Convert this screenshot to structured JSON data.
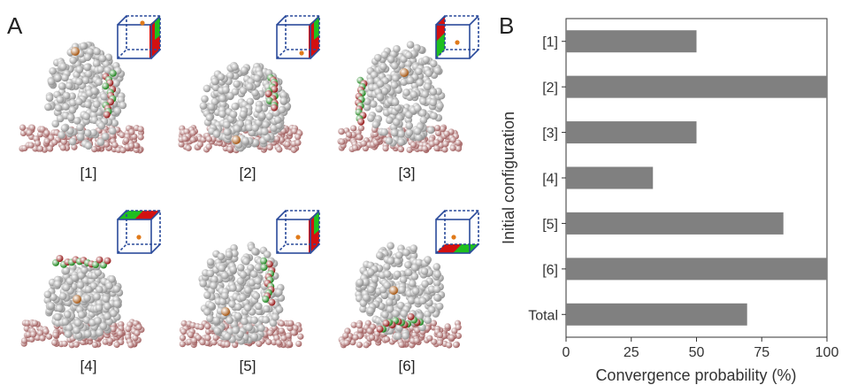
{
  "panel_a": {
    "letter": "A",
    "configurations": [
      {
        "label": "[1]"
      },
      {
        "label": "[2]"
      },
      {
        "label": "[3]"
      },
      {
        "label": "[4]"
      },
      {
        "label": "[5]"
      },
      {
        "label": "[6]"
      }
    ]
  },
  "panel_b": {
    "letter": "B"
  },
  "colors": {
    "bar": "#808080",
    "sphere_grey": "#d7d7d7",
    "membrane": "#c98585",
    "ligand_green": "#1fbf1f",
    "ligand_red": "#d31010",
    "marker_orange": "#e07a1a",
    "box_edge": "#2b4b9b"
  },
  "chart_data": {
    "type": "bar",
    "orientation": "horizontal",
    "categories": [
      "[1]",
      "[2]",
      "[3]",
      "[4]",
      "[5]",
      "[6]",
      "Total"
    ],
    "values": [
      50,
      100,
      50,
      33.3,
      83.3,
      100,
      69.4
    ],
    "xlabel": "Convergence probability (%)",
    "ylabel": "Initial configuration",
    "xlim": [
      0,
      100
    ],
    "xticks": [
      0,
      25,
      50,
      75,
      100
    ],
    "grid": false
  }
}
